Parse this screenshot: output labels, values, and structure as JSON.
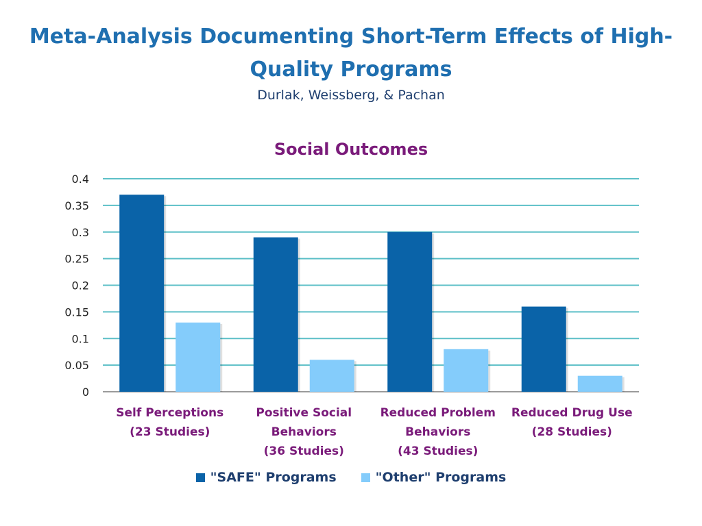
{
  "header": {
    "title_line1": "Meta-Analysis Documenting Short-Term Effects of High-",
    "title_line2": "Quality Programs",
    "subtitle": "Durlak, Weissberg, & Pachan"
  },
  "colors": {
    "title": "#1f6fb0",
    "chart_title": "#7a1b7a",
    "category_label": "#7a1b7a",
    "safe": "#0a63a8",
    "other": "#84ccfb",
    "grid": "#5cbfc7"
  },
  "chart_data": {
    "type": "bar",
    "title": "Social Outcomes",
    "categories": [
      [
        "Self Perceptions",
        "(23 Studies)"
      ],
      [
        "Positive Social",
        "Behaviors",
        "(36 Studies)"
      ],
      [
        "Reduced Problem",
        "Behaviors",
        "(43 Studies)"
      ],
      [
        "Reduced Drug Use",
        "(28 Studies)"
      ]
    ],
    "series": [
      {
        "name": "\"SAFE\" Programs",
        "values": [
          0.37,
          0.29,
          0.3,
          0.16
        ]
      },
      {
        "name": "\"Other\" Programs",
        "values": [
          0.13,
          0.06,
          0.08,
          0.03
        ]
      }
    ],
    "ylim": [
      0,
      0.4
    ],
    "yticks": [
      "0",
      "0.05",
      "0.1",
      "0.15",
      "0.2",
      "0.25",
      "0.3",
      "0.35",
      "0.4"
    ],
    "grid": true,
    "legend_position": "bottom"
  }
}
